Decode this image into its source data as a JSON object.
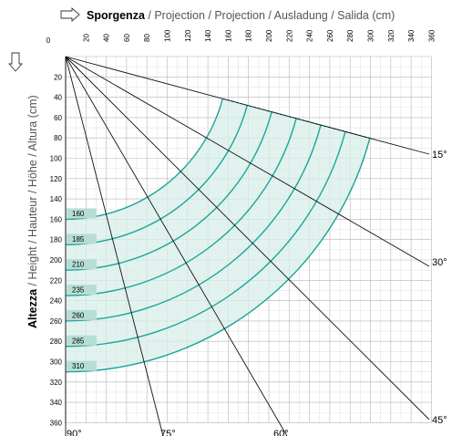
{
  "x_axis": {
    "title_bold": "Sporgenza",
    "title_rest": " / Projection / Projection / Ausladung / Salida (cm)",
    "ticks": [
      "0",
      "20",
      "40",
      "60",
      "80",
      "100",
      "120",
      "140",
      "160",
      "180",
      "200",
      "220",
      "240",
      "260",
      "280",
      "300",
      "320",
      "340",
      "360"
    ]
  },
  "y_axis": {
    "title_bold": "Altezza",
    "title_rest": " / Height / Hauteur / Höhe / Altura  (cm)",
    "ticks": [
      "20",
      "40",
      "60",
      "80",
      "100",
      "120",
      "140",
      "160",
      "180",
      "200",
      "220",
      "240",
      "260",
      "280",
      "300",
      "320",
      "340",
      "360"
    ]
  },
  "angles": [
    "15°",
    "30°",
    "45°",
    "60°",
    "75°",
    "90°"
  ],
  "arm_lengths": [
    "160",
    "185",
    "210",
    "235",
    "260",
    "285",
    "310"
  ],
  "colors": {
    "arc": "#1aa59a",
    "fill": "#d7ede9",
    "chip": "#b7ded6",
    "grid": "#bfbfbf"
  },
  "icons": {
    "x_arrow": "arrow-right-outline-icon",
    "y_arrow": "arrow-down-outline-icon"
  }
}
